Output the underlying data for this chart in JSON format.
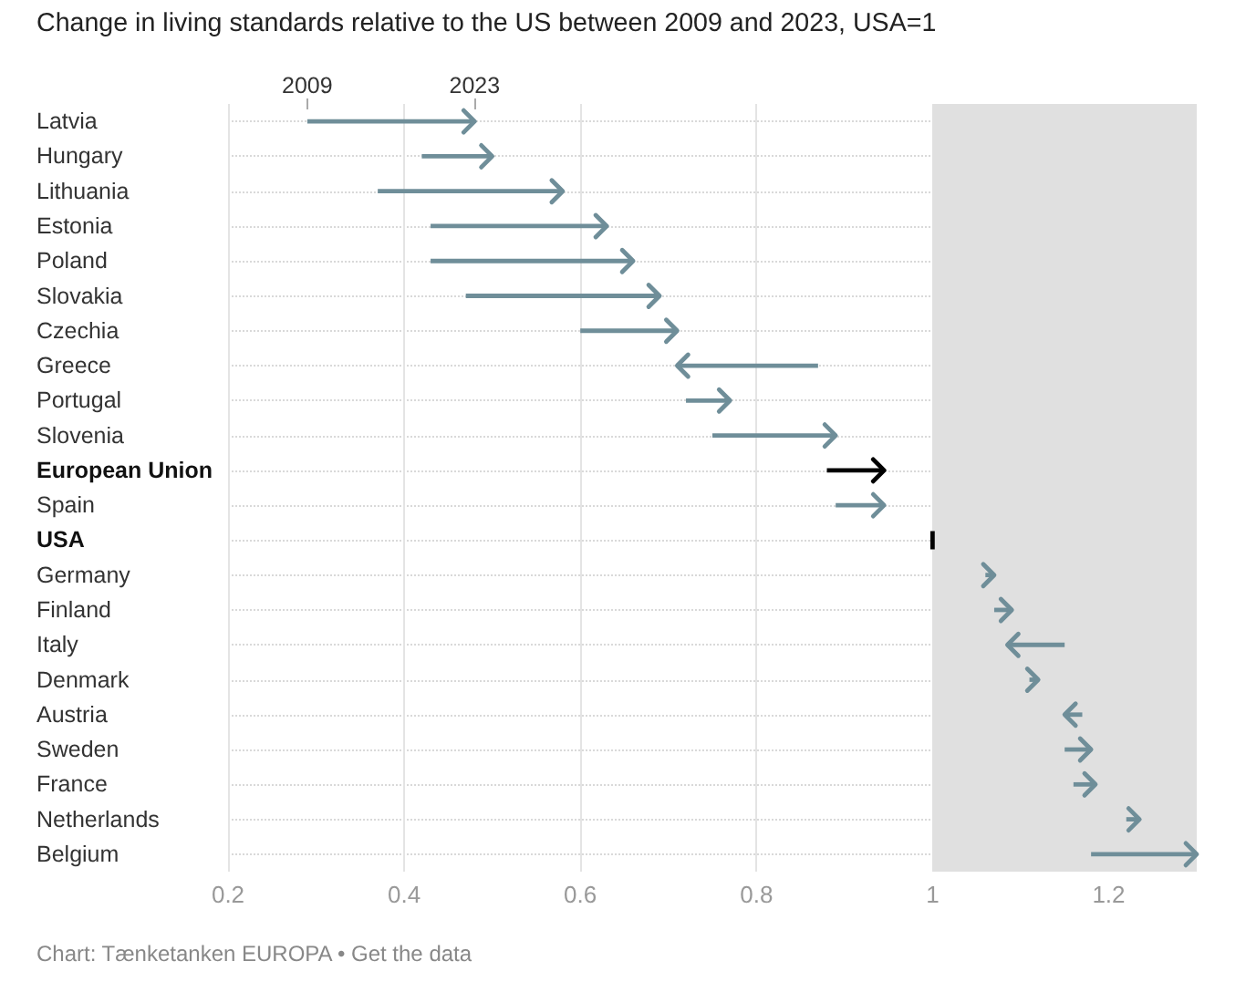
{
  "chart_data": {
    "type": "bar",
    "orientation": "horizontal",
    "title": "Change in living standards relative to the US between 2009 and 2023, USA=1",
    "categories": [
      "Latvia",
      "Hungary",
      "Lithuania",
      "Estonia",
      "Poland",
      "Slovakia",
      "Czechia",
      "Greece",
      "Portugal",
      "Slovenia",
      "European Union",
      "Spain",
      "USA",
      "Germany",
      "Finland",
      "Italy",
      "Denmark",
      "Austria",
      "Sweden",
      "France",
      "Netherlands",
      "Belgium"
    ],
    "base": [
      0.29,
      0.42,
      0.37,
      0.43,
      0.43,
      0.47,
      0.6,
      0.87,
      0.72,
      0.75,
      0.88,
      0.89,
      1,
      1.06,
      1.07,
      1.15,
      1.11,
      1.17,
      1.15,
      1.16,
      1.22,
      1.18
    ],
    "values": [
      0.19,
      0.08,
      0.21,
      0.2,
      0.23,
      0.22,
      0.11,
      -0.16,
      0.05,
      0.14,
      0.065,
      0.055,
      0,
      0.01,
      0.02,
      -0.065,
      0.01,
      -0.02,
      0.03,
      0.025,
      0.015,
      0.12
    ],
    "colors": [
      "#6f8e99",
      "#6f8e99",
      "#6f8e99",
      "#6f8e99",
      "#6f8e99",
      "#6f8e99",
      "#6f8e99",
      "#6f8e99",
      "#6f8e99",
      "#6f8e99",
      "#000000",
      "#6f8e99",
      "#000000",
      "#6f8e99",
      "#6f8e99",
      "#6f8e99",
      "#6f8e99",
      "#6f8e99",
      "#6f8e99",
      "#6f8e99",
      "#6f8e99",
      "#6f8e99"
    ],
    "xlim": [
      0.2,
      1.3
    ],
    "xticks": [
      0.2,
      0.4,
      0.6,
      0.8,
      1,
      1.2
    ],
    "grid": true,
    "bands": [
      {
        "axis": "x",
        "from": 1,
        "to": 1.3,
        "color": "#e0e0e0"
      }
    ],
    "annotations": [
      {
        "text": "2009",
        "x": 0.29,
        "y": "Latvia"
      },
      {
        "text": "2023",
        "x": 0.48,
        "y": "Latvia"
      },
      "Chart: Tænketanken EUROPA • Get the data"
    ]
  }
}
